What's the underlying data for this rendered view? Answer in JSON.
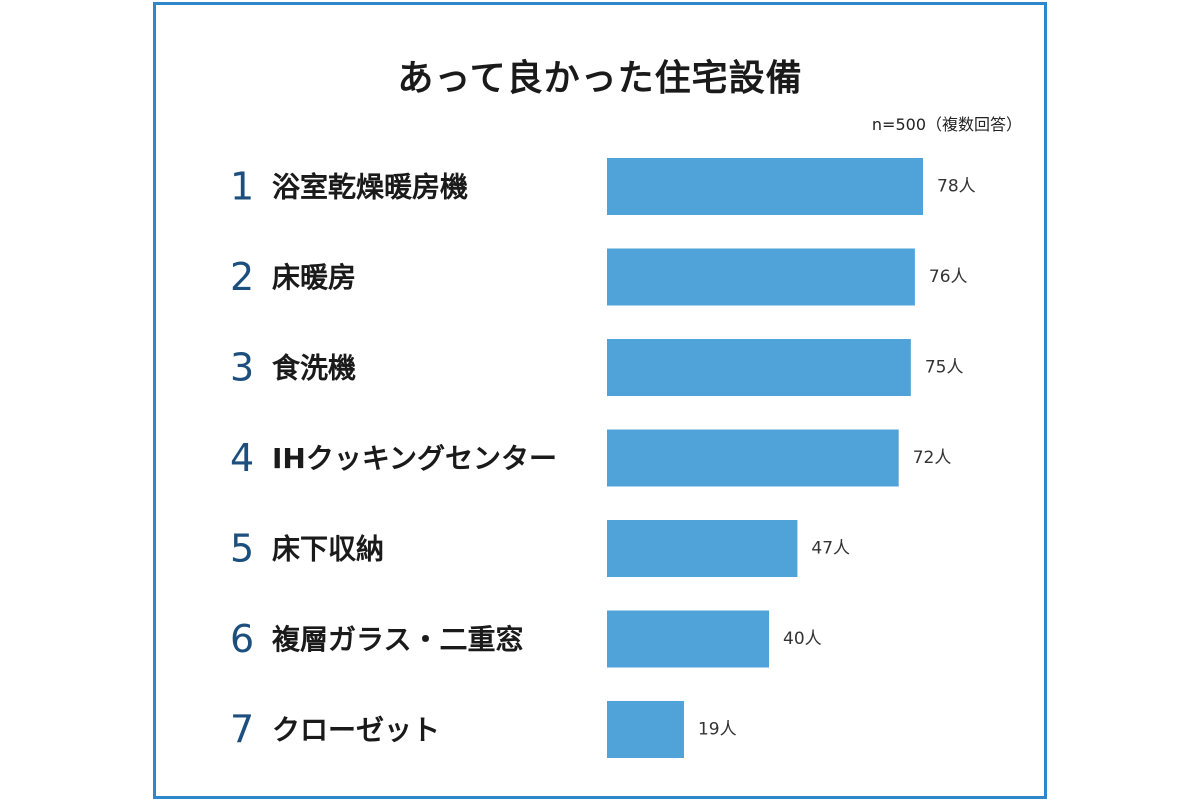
{
  "title": "あって良かった住宅設備",
  "note": "n=500（複数回答）",
  "colors": {
    "bar": "#4fa3d9",
    "border": "#2f86c8",
    "rank": "#1d4f7e"
  },
  "chart_data": {
    "type": "bar",
    "orientation": "horizontal",
    "title": "あって良かった住宅設備",
    "subtitle": "n=500（複数回答）",
    "ranks": [
      "1",
      "2",
      "3",
      "4",
      "5",
      "6",
      "7"
    ],
    "categories": [
      "浴室乾燥暖房機",
      "床暖房",
      "食洗機",
      "IHクッキングセンター",
      "床下収納",
      "複層ガラス・二重窓",
      "クローゼット"
    ],
    "values": [
      78,
      76,
      75,
      72,
      47,
      40,
      19
    ],
    "value_labels": [
      "78人",
      "76人",
      "75人",
      "72人",
      "47人",
      "40人",
      "19人"
    ],
    "unit": "人",
    "xlim": [
      0,
      78
    ],
    "grid": false,
    "legend": "none"
  }
}
